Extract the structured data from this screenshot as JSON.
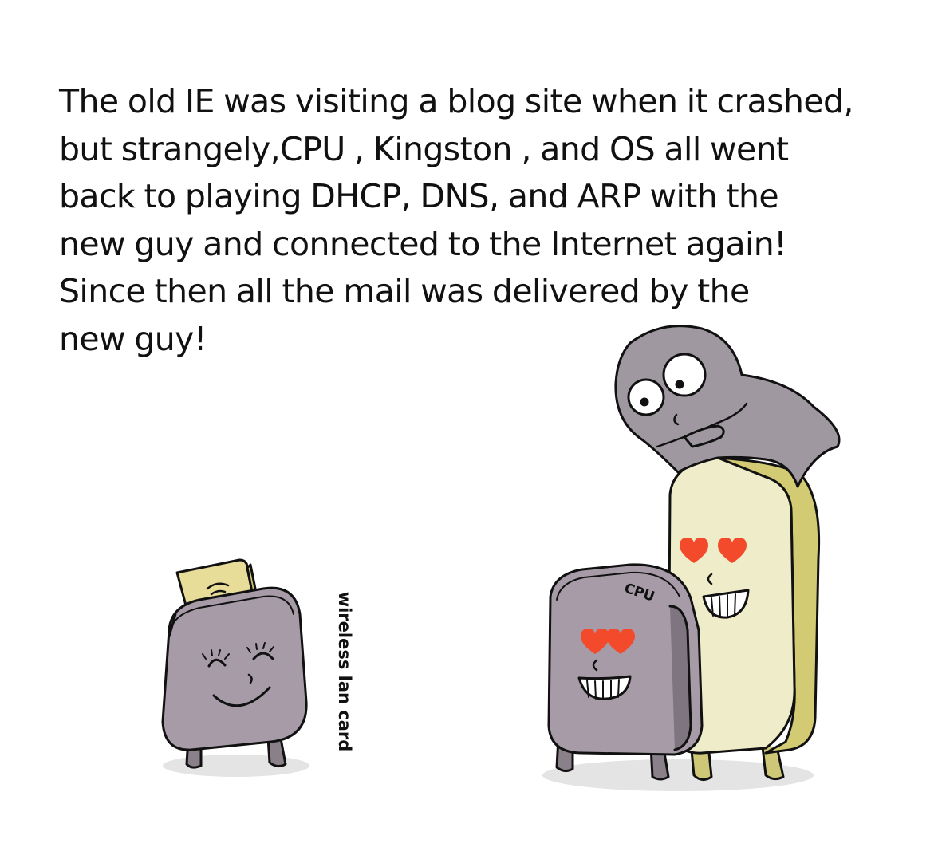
{
  "caption": {
    "lines": [
      "The old IE was visiting a blog site when it crashed,",
      "but strangely,CPU , Kingston , and OS all went",
      "back to playing DHCP, DNS, and ARP with the",
      "new guy and connected to the Internet again!",
      "Since then all the mail was delivered by the",
      "new guy!"
    ]
  },
  "labels": {
    "wireless_lan_card": "wireless lan card",
    "cpu": "CPU"
  },
  "colors": {
    "outline": "#111111",
    "device_gray": "#a69ba6",
    "device_gray_dark": "#7f7580",
    "card_top": "#e7dc98",
    "kingston_body": "#efecc9",
    "kingston_side": "#d3cb74",
    "ghost": "#9f98a0",
    "heart": "#f24a2a",
    "shadow": "#e2e2e2"
  },
  "icons": {
    "wifi": "wifi-icon",
    "heart": "heart-icon"
  }
}
